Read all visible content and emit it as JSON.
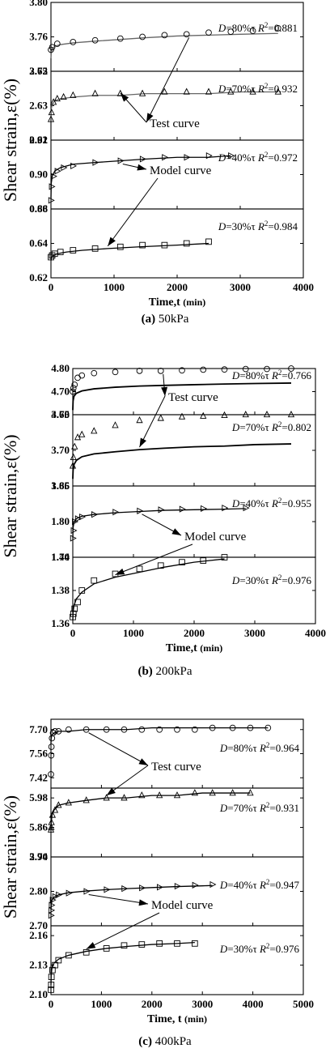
{
  "figure": {
    "type": "line",
    "notes": "Three groups of 4 stacked shear strain vs time panels (markers = test data, solid line = model curve)"
  },
  "chart_data": [
    {
      "type": "line",
      "group": "a",
      "caption_letter": "(a)",
      "caption_text": " 50kPa",
      "ylabel": "Shear strain,ε(%)",
      "xlabel_main": "Time,t ",
      "xlabel_unit": "(min)",
      "xlim": [
        0,
        4000
      ],
      "xticks": [
        0,
        1000,
        2000,
        3000,
        4000
      ],
      "xtick_labels": [
        "0",
        "1000",
        "2000",
        "3000",
        "4000"
      ],
      "callouts": [
        {
          "label": "Test curve",
          "anchor_panel": 1
        },
        {
          "label": "Model curve",
          "anchor_panel": 2
        }
      ],
      "panels": [
        {
          "ylim": [
            3.72,
            3.8
          ],
          "yticks": [
            "3.72",
            "3.76",
            "3.80"
          ],
          "marker": "circle",
          "lineColor": "#666666",
          "ann_prefix": "D",
          "ann_mid": "=80%τ ",
          "ann_r": "R",
          "ann_eq": "=0.881",
          "test_x": [
            0,
            20,
            100,
            350,
            700,
            1100,
            1450,
            1800,
            2150,
            2500,
            2850,
            3200,
            3600
          ],
          "test_y": [
            3.745,
            3.748,
            3.752,
            3.754,
            3.756,
            3.758,
            3.76,
            3.762,
            3.763,
            3.765,
            3.766,
            3.767,
            3.77
          ],
          "model_x": [
            0,
            5,
            20,
            60,
            150,
            350,
            700,
            1100,
            1500,
            2000,
            2500,
            3000,
            3600
          ],
          "model_y": [
            3.735,
            3.742,
            3.746,
            3.749,
            3.751,
            3.753,
            3.755,
            3.757,
            3.759,
            3.761,
            3.762,
            3.763,
            3.764
          ]
        },
        {
          "ylim": [
            2.61,
            2.65
          ],
          "yticks": [
            "2.61",
            "2.63",
            "2.65"
          ],
          "marker": "triangle",
          "lineColor": "#666666",
          "ann_prefix": "D",
          "ann_mid": "=70%τ ",
          "ann_r": "R",
          "ann_eq": "=0.932",
          "test_x": [
            0,
            10,
            40,
            100,
            200,
            350,
            700,
            1100,
            1450,
            1800,
            2150,
            2500,
            2850,
            3200,
            3600
          ],
          "test_y": [
            2.622,
            2.626,
            2.632,
            2.634,
            2.635,
            2.636,
            2.637,
            2.637,
            2.637,
            2.638,
            2.638,
            2.638,
            2.638,
            2.638,
            2.638
          ],
          "model_x": [
            0,
            5,
            20,
            60,
            150,
            350,
            700,
            1100,
            1500,
            2000,
            2500,
            3000,
            3600
          ],
          "model_y": [
            2.622,
            2.628,
            2.631,
            2.633,
            2.634,
            2.635,
            2.636,
            2.636,
            2.637,
            2.637,
            2.637,
            2.638,
            2.638
          ]
        },
        {
          "ylim": [
            0.88,
            0.92
          ],
          "yticks": [
            "0.88",
            "0.90",
            "0.92"
          ],
          "marker": "triright",
          "lineColor": "#000000",
          "ann_prefix": "D",
          "ann_mid": "=40%τ  ",
          "ann_r": "R",
          "ann_eq": "=0.972",
          "test_x": [
            0,
            10,
            40,
            100,
            200,
            350,
            700,
            1100,
            1450,
            1800,
            2150,
            2500,
            2850
          ],
          "test_y": [
            0.885,
            0.893,
            0.899,
            0.902,
            0.904,
            0.905,
            0.907,
            0.908,
            0.909,
            0.91,
            0.91,
            0.911,
            0.911
          ],
          "model_x": [
            0,
            5,
            20,
            60,
            150,
            350,
            700,
            1100,
            1500,
            2000,
            2500,
            2850
          ],
          "model_y": [
            0.886,
            0.895,
            0.899,
            0.902,
            0.904,
            0.906,
            0.907,
            0.908,
            0.909,
            0.91,
            0.91,
            0.911
          ]
        },
        {
          "ylim": [
            0.62,
            0.66
          ],
          "yticks": [
            "0.62",
            "0.64",
            "0.66"
          ],
          "marker": "square",
          "lineColor": "#000000",
          "ann_prefix": "D",
          "ann_mid": "=30%τ  ",
          "ann_r": "R",
          "ann_eq": "=0.984",
          "test_x": [
            0,
            20,
            60,
            150,
            350,
            700,
            1100,
            1450,
            1800,
            2150,
            2500
          ],
          "test_y": [
            0.632,
            0.633,
            0.634,
            0.635,
            0.636,
            0.637,
            0.638,
            0.639,
            0.639,
            0.64,
            0.641
          ],
          "model_x": [
            0,
            10,
            40,
            100,
            250,
            500,
            900,
            1400,
            2000,
            2500
          ],
          "model_y": [
            0.63,
            0.632,
            0.633,
            0.634,
            0.635,
            0.636,
            0.637,
            0.638,
            0.639,
            0.64
          ]
        }
      ]
    },
    {
      "type": "line",
      "group": "b",
      "caption_letter": "(b)",
      "caption_text": " 200kPa",
      "ylabel": "Shear strain,ε(%)",
      "xlabel_main": "Time,t ",
      "xlabel_unit": "(min)",
      "xlim": [
        0,
        4000
      ],
      "xticks": [
        0,
        1000,
        2000,
        3000,
        4000
      ],
      "xtick_labels": [
        "0",
        "1000",
        "2000",
        "3000",
        "4000"
      ],
      "callouts": [
        {
          "label": "Test curve",
          "anchor_panel": 1
        },
        {
          "label": "Model curve",
          "anchor_panel": 2
        }
      ],
      "panels": [
        {
          "ylim": [
            4.6,
            4.8
          ],
          "yticks": [
            "4.60",
            "4.70",
            "4.80"
          ],
          "marker": "circle",
          "lineColor": "#000000",
          "ann_prefix": "D",
          "ann_mid": "=80%τ ",
          "ann_r": "R",
          "ann_eq": "=0.766",
          "test_x": [
            0,
            10,
            30,
            80,
            150,
            350,
            700,
            1100,
            1450,
            1800,
            2150,
            2500,
            2850,
            3200,
            3600
          ],
          "test_y": [
            4.7,
            4.715,
            4.73,
            4.76,
            4.77,
            4.78,
            4.785,
            4.79,
            4.79,
            4.792,
            4.795,
            4.796,
            4.798,
            4.798,
            4.8
          ],
          "model_x": [
            0,
            5,
            20,
            60,
            150,
            350,
            700,
            1100,
            1500,
            2000,
            2500,
            3000,
            3600
          ],
          "model_y": [
            4.62,
            4.66,
            4.68,
            4.693,
            4.703,
            4.712,
            4.719,
            4.724,
            4.727,
            4.73,
            4.733,
            4.735,
            4.737
          ]
        },
        {
          "ylim": [
            3.65,
            3.75
          ],
          "yticks": [
            "3.65",
            "3.70",
            "3.75"
          ],
          "marker": "triangle",
          "lineColor": "#000000",
          "ann_prefix": "D",
          "ann_mid": "=70%τ ",
          "ann_r": "R",
          "ann_eq": "=0.802",
          "test_x": [
            0,
            10,
            30,
            80,
            150,
            350,
            700,
            1100,
            1450,
            1800,
            2150,
            2500,
            2850,
            3200,
            3600
          ],
          "test_y": [
            3.678,
            3.69,
            3.705,
            3.718,
            3.722,
            3.727,
            3.735,
            3.742,
            3.745,
            3.747,
            3.748,
            3.749,
            3.75,
            3.75,
            3.75
          ],
          "model_x": [
            0,
            5,
            20,
            60,
            150,
            350,
            700,
            1100,
            1500,
            2000,
            2500,
            3000,
            3600
          ],
          "model_y": [
            3.66,
            3.672,
            3.68,
            3.686,
            3.691,
            3.695,
            3.698,
            3.701,
            3.703,
            3.705,
            3.706,
            3.708,
            3.709
          ]
        },
        {
          "ylim": [
            1.74,
            1.86
          ],
          "yticks": [
            "1.74",
            "1.80",
            "1.86"
          ],
          "marker": "triright",
          "lineColor": "#000000",
          "ann_prefix": "D",
          "ann_mid": "=40%τ ",
          "ann_r": "R",
          "ann_eq": "=0.955",
          "test_x": [
            0,
            10,
            30,
            80,
            150,
            350,
            700,
            1100,
            1450,
            1800,
            2150,
            2500,
            2850
          ],
          "test_y": [
            1.772,
            1.785,
            1.8,
            1.805,
            1.808,
            1.812,
            1.816,
            1.818,
            1.82,
            1.821,
            1.822,
            1.823,
            1.823
          ],
          "model_x": [
            0,
            5,
            20,
            60,
            150,
            350,
            700,
            1100,
            1500,
            2000,
            2500,
            2850
          ],
          "model_y": [
            1.772,
            1.79,
            1.799,
            1.805,
            1.809,
            1.812,
            1.815,
            1.817,
            1.819,
            1.82,
            1.821,
            1.822
          ]
        },
        {
          "ylim": [
            1.36,
            1.4
          ],
          "yticks": [
            "1.36",
            "1.38",
            "1.40"
          ],
          "marker": "square",
          "lineColor": "#000000",
          "ann_prefix": "D",
          "ann_mid": "=30%τ  ",
          "ann_r": "R",
          "ann_eq": "=0.976",
          "test_x": [
            0,
            10,
            30,
            80,
            150,
            350,
            700,
            1100,
            1450,
            1800,
            2150,
            2500
          ],
          "test_y": [
            1.364,
            1.366,
            1.369,
            1.373,
            1.38,
            1.386,
            1.39,
            1.393,
            1.395,
            1.397,
            1.398,
            1.4
          ],
          "model_x": [
            0,
            5,
            20,
            60,
            150,
            350,
            700,
            1100,
            1500,
            2000,
            2500
          ],
          "model_y": [
            1.362,
            1.367,
            1.371,
            1.375,
            1.379,
            1.384,
            1.388,
            1.391,
            1.394,
            1.397,
            1.399
          ]
        }
      ]
    },
    {
      "type": "line",
      "group": "c",
      "caption_letter": "(c)",
      "caption_text": "   400kPa",
      "ylabel": "Shear strain,ε(%)",
      "xlabel_main": "Time, t ",
      "xlabel_unit": "(min)",
      "xlim": [
        0,
        5000
      ],
      "xticks": [
        0,
        1000,
        2000,
        3000,
        4000,
        5000
      ],
      "xtick_labels": [
        "0",
        "1000",
        "2000",
        "3000",
        "4000",
        "5000"
      ],
      "callouts": [
        {
          "label": "Test curve",
          "anchor_panel": 1
        },
        {
          "label": "Model curve",
          "anchor_panel": 2
        }
      ],
      "panels": [
        {
          "ylim": [
            7.36,
            7.76
          ],
          "yticks": [
            "7.42",
            "7.56",
            "7.70"
          ],
          "marker": "circle",
          "lineColor": "#000000",
          "ann_prefix": "D",
          "ann_mid": "=80%τ  ",
          "ann_r": "R",
          "ann_eq": "=0.964",
          "test_x": [
            0,
            5,
            10,
            20,
            40,
            80,
            150,
            350,
            700,
            1100,
            1450,
            1800,
            2150,
            2500,
            2850,
            3200,
            3600,
            3950,
            4300
          ],
          "test_y": [
            7.44,
            7.55,
            7.6,
            7.65,
            7.68,
            7.69,
            7.69,
            7.7,
            7.7,
            7.7,
            7.7,
            7.7,
            7.7,
            7.7,
            7.7,
            7.71,
            7.71,
            7.71,
            7.71
          ],
          "model_x": [
            0,
            5,
            20,
            60,
            150,
            350,
            700,
            1100,
            1500,
            2000,
            2500,
            3000,
            3600,
            4300
          ],
          "model_y": [
            7.62,
            7.65,
            7.67,
            7.68,
            7.69,
            7.69,
            7.7,
            7.7,
            7.7,
            7.71,
            7.71,
            7.71,
            7.71,
            7.71
          ]
        },
        {
          "ylim": [
            5.74,
            6.02
          ],
          "yticks": [
            "5.74",
            "5.86",
            "5.98"
          ],
          "marker": "triangle",
          "lineColor": "#000000",
          "ann_prefix": "D",
          "ann_mid": "=70%τ ",
          "ann_r": "R",
          "ann_eq": "=0.931",
          "test_x": [
            0,
            5,
            10,
            30,
            80,
            150,
            350,
            700,
            1100,
            1450,
            1800,
            2150,
            2500,
            2850,
            3200,
            3600,
            3950
          ],
          "test_y": [
            5.85,
            5.86,
            5.88,
            5.91,
            5.93,
            5.95,
            5.96,
            5.97,
            5.98,
            5.98,
            5.99,
            5.99,
            5.99,
            6.0,
            6.0,
            6.0,
            6.0
          ],
          "model_x": [
            0,
            5,
            20,
            60,
            150,
            350,
            700,
            1100,
            1500,
            2000,
            2500,
            3000,
            3600,
            3950
          ],
          "model_y": [
            5.85,
            5.88,
            5.91,
            5.93,
            5.95,
            5.96,
            5.97,
            5.98,
            5.98,
            5.99,
            5.99,
            6.0,
            6.0,
            6.0
          ]
        },
        {
          "ylim": [
            2.7,
            2.9
          ],
          "yticks": [
            "2.70",
            "2.80",
            "2.90"
          ],
          "marker": "triright",
          "lineColor": "#000000",
          "ann_prefix": "D",
          "ann_mid": "=40%τ ",
          "ann_r": "R",
          "ann_eq": "=0.947",
          "test_x": [
            0,
            5,
            10,
            30,
            80,
            150,
            350,
            700,
            1100,
            1450,
            1800,
            2150,
            2500,
            2850,
            3200
          ],
          "test_y": [
            2.73,
            2.745,
            2.76,
            2.775,
            2.785,
            2.79,
            2.795,
            2.8,
            2.805,
            2.808,
            2.81,
            2.812,
            2.815,
            2.818,
            2.82
          ],
          "model_x": [
            0,
            5,
            20,
            60,
            150,
            350,
            700,
            1100,
            1500,
            2000,
            2500,
            3000,
            3200
          ],
          "model_y": [
            2.745,
            2.76,
            2.775,
            2.783,
            2.79,
            2.796,
            2.801,
            2.805,
            2.808,
            2.811,
            2.814,
            2.816,
            2.817
          ]
        },
        {
          "ylim": [
            2.1,
            2.17
          ],
          "yticks": [
            "2.10",
            "2.13",
            "2.16"
          ],
          "marker": "square",
          "lineColor": "#000000",
          "ann_prefix": "D",
          "ann_mid": "=30%τ  ",
          "ann_r": "R",
          "ann_eq": "=0.976",
          "test_x": [
            0,
            5,
            10,
            30,
            80,
            150,
            350,
            700,
            1100,
            1450,
            1800,
            2150,
            2500,
            2850
          ],
          "test_y": [
            2.105,
            2.11,
            2.118,
            2.125,
            2.13,
            2.135,
            2.14,
            2.143,
            2.147,
            2.15,
            2.151,
            2.152,
            2.152,
            2.152
          ],
          "model_x": [
            0,
            5,
            20,
            60,
            150,
            350,
            700,
            1100,
            1500,
            2000,
            2500,
            2850
          ],
          "model_y": [
            2.11,
            2.12,
            2.127,
            2.132,
            2.136,
            2.14,
            2.144,
            2.147,
            2.149,
            2.151,
            2.152,
            2.153
          ]
        }
      ]
    }
  ]
}
